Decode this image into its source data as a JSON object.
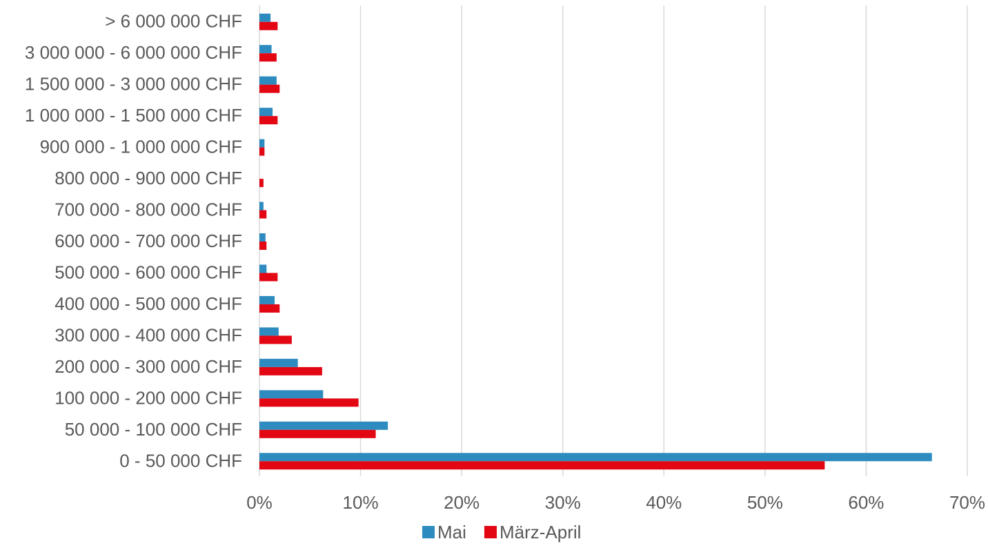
{
  "chart_data": {
    "type": "bar",
    "orientation": "horizontal",
    "categories": [
      "0 - 50 000 CHF",
      "50 000 - 100 000 CHF",
      "100 000 - 200 000 CHF",
      "200 000 - 300 000 CHF",
      "300 000 - 400 000 CHF",
      "400 000 - 500 000 CHF",
      "500 000 - 600 000 CHF",
      "600 000 - 700 000 CHF",
      "700 000 - 800 000 CHF",
      "800 000 - 900 000 CHF",
      "900 000 - 1 000 000 CHF",
      "1 000 000 - 1 500 000 CHF",
      "1 500 000 - 3 000 000 CHF",
      "3 000 000 - 6 000 000 CHF",
      "> 6 000 000 CHF"
    ],
    "series": [
      {
        "name": "Mai",
        "color": "#2e8bc0",
        "values": [
          66.5,
          12.7,
          6.3,
          3.8,
          1.9,
          1.5,
          0.7,
          0.6,
          0.4,
          0.0,
          0.5,
          1.3,
          1.7,
          1.2,
          1.1
        ]
      },
      {
        "name": "März-April",
        "color": "#e30613",
        "values": [
          55.9,
          11.5,
          9.8,
          6.2,
          3.2,
          2.0,
          1.8,
          0.7,
          0.7,
          0.4,
          0.5,
          1.8,
          2.0,
          1.7,
          1.8
        ]
      }
    ],
    "xlim": [
      0,
      70
    ],
    "xticks": [
      "0%",
      "10%",
      "20%",
      "30%",
      "40%",
      "50%",
      "60%",
      "70%"
    ],
    "grid": "vertical",
    "legend": "bottom-center",
    "title": "",
    "xlabel": "",
    "ylabel": ""
  }
}
